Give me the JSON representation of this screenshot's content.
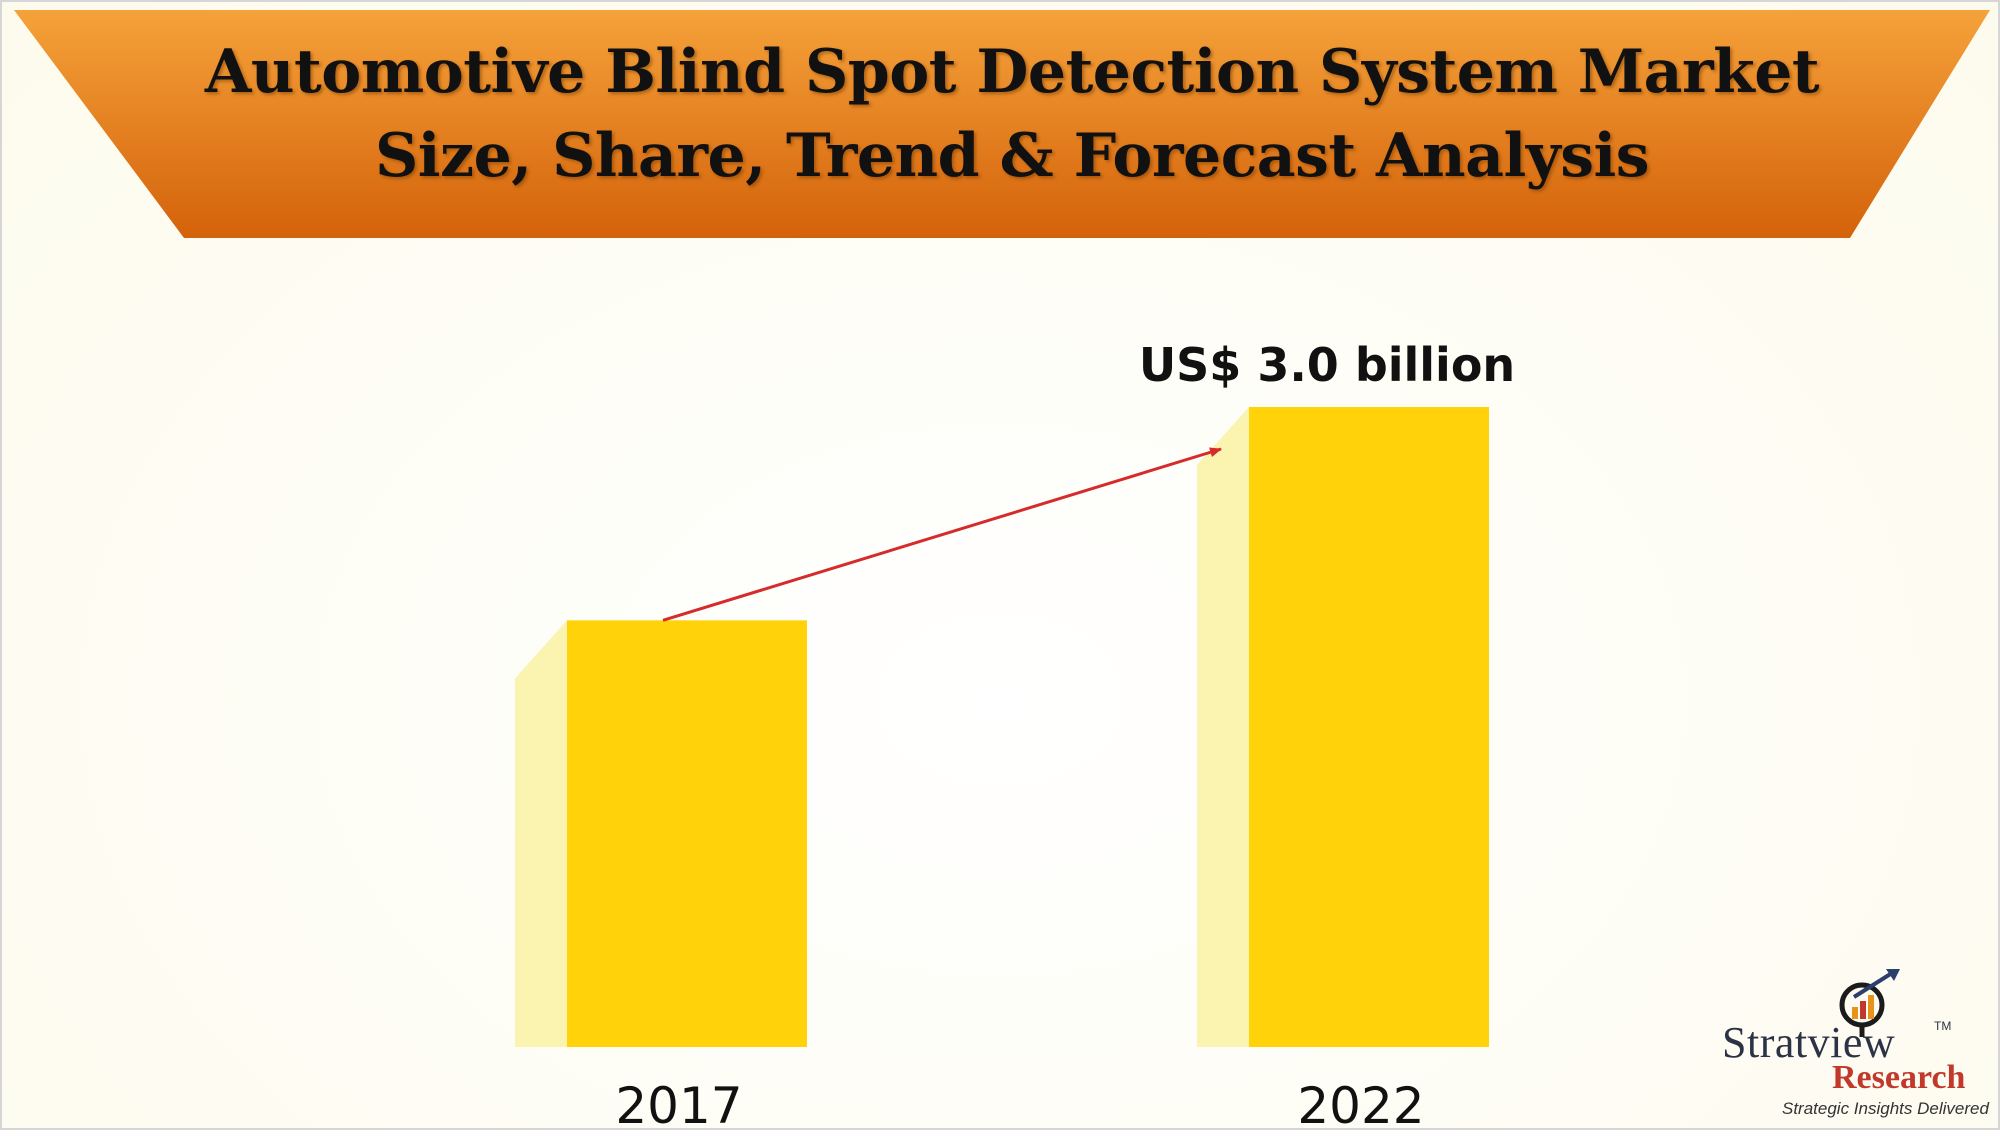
{
  "title": "Automotive Blind Spot Detection System Market\nSize, Share, Trend & Forecast Analysis",
  "colors": {
    "banner_top": "#f5a23a",
    "banner_bottom": "#d4620a",
    "bar_front": "#ffd20a",
    "bar_side": "#fbf3b0",
    "arrow": "#d62b2b"
  },
  "chart_data": {
    "type": "bar",
    "categories": [
      "2017",
      "2022"
    ],
    "data_labels": [
      "",
      "US$ 3.0 billion"
    ],
    "values": [
      2.0,
      3.0
    ],
    "ylim": [
      0,
      3.0
    ],
    "grid": false,
    "legend": "none",
    "title": "",
    "xlabel": "",
    "ylabel": ""
  },
  "logo": {
    "brand": "Stratview",
    "trademark": "TM",
    "sub": "Research",
    "tagline": "Strategic Insights Delivered"
  }
}
